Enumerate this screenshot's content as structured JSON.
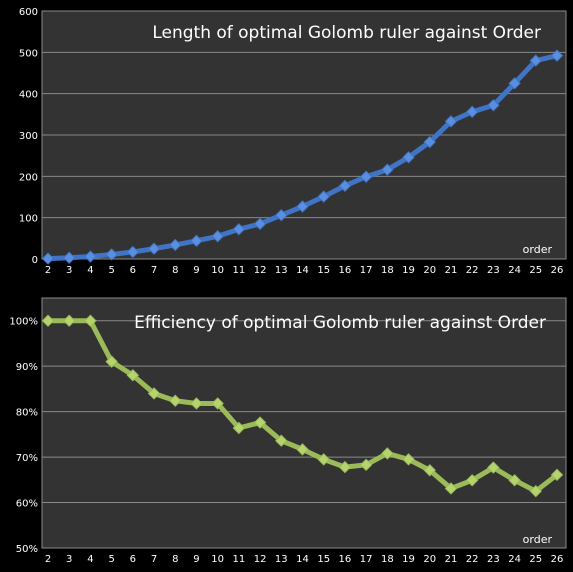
{
  "chart_data": [
    {
      "type": "line",
      "title": "Length of optimal Golomb ruler against Order",
      "xlabel": "order",
      "ylabel": "",
      "x": [
        2,
        3,
        4,
        5,
        6,
        7,
        8,
        9,
        10,
        11,
        12,
        13,
        14,
        15,
        16,
        17,
        18,
        19,
        20,
        21,
        22,
        23,
        24,
        25,
        26
      ],
      "series": [
        {
          "values": [
            1,
            3,
            6,
            11,
            17,
            25,
            34,
            44,
            55,
            72,
            85,
            106,
            127,
            151,
            177,
            199,
            216,
            246,
            283,
            333,
            356,
            372,
            425,
            480,
            492
          ]
        }
      ],
      "ylim": [
        0,
        600
      ],
      "yticks": [
        0,
        100,
        200,
        300,
        400,
        500,
        600
      ],
      "ytick_labels": [
        "0",
        "100",
        "200",
        "300",
        "400",
        "500",
        "600"
      ],
      "grid": true,
      "legend": "none",
      "line_color": "#3f74c6",
      "marker_color": "#5a8fe0"
    },
    {
      "type": "line",
      "title": "Efficiency of optimal Golomb ruler against Order",
      "xlabel": "order",
      "ylabel": "",
      "x": [
        2,
        3,
        4,
        5,
        6,
        7,
        8,
        9,
        10,
        11,
        12,
        13,
        14,
        15,
        16,
        17,
        18,
        19,
        20,
        21,
        22,
        23,
        24,
        25,
        26
      ],
      "series": [
        {
          "values": [
            100,
            100,
            100,
            91,
            88,
            84,
            82.4,
            81.8,
            81.8,
            76.4,
            77.6,
            73.6,
            71.7,
            69.5,
            67.8,
            68.3,
            70.8,
            69.5,
            67.1,
            63.1,
            64.9,
            67.7,
            64.9,
            62.5,
            66.1
          ]
        }
      ],
      "ylim": [
        50,
        105
      ],
      "yticks": [
        50,
        60,
        70,
        80,
        90,
        100
      ],
      "ytick_labels": [
        "50%",
        "60%",
        "70%",
        "80%",
        "90%",
        "100%"
      ],
      "grid": true,
      "legend": "none",
      "line_color": "#9bbb59",
      "marker_color": "#b5d46e"
    }
  ]
}
